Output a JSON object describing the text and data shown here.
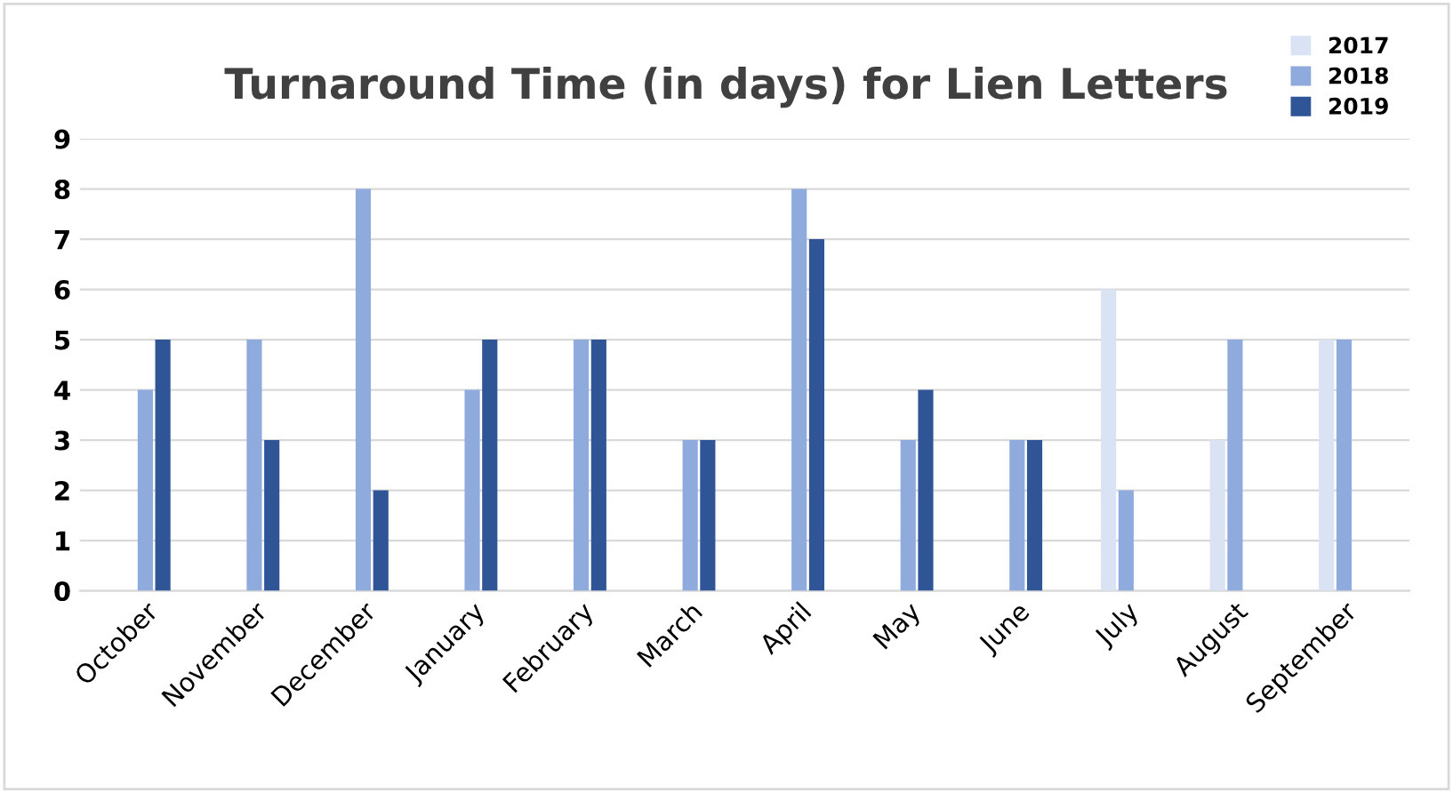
{
  "chart_data": {
    "type": "bar",
    "title": "Turnaround Time (in days) for Lien Letters",
    "categories": [
      "October",
      "November",
      "December",
      "January",
      "February",
      "March",
      "April",
      "May",
      "June",
      "July",
      "August",
      "September"
    ],
    "series": [
      {
        "name": "2017",
        "color": "#dae3f3",
        "values": [
          null,
          null,
          null,
          null,
          null,
          null,
          null,
          null,
          null,
          6,
          3,
          5
        ]
      },
      {
        "name": "2018",
        "color": "#8faadc",
        "values": [
          4,
          5,
          8,
          4,
          5,
          3,
          8,
          3,
          3,
          2,
          5,
          5
        ]
      },
      {
        "name": "2019",
        "color": "#2f5597",
        "values": [
          5,
          3,
          2,
          5,
          5,
          3,
          7,
          4,
          3,
          null,
          null,
          null
        ]
      }
    ],
    "ylim": [
      0,
      9
    ],
    "yticks": [
      0,
      1,
      2,
      3,
      4,
      5,
      6,
      7,
      8,
      9
    ],
    "grid": "y",
    "legend": "top right"
  }
}
